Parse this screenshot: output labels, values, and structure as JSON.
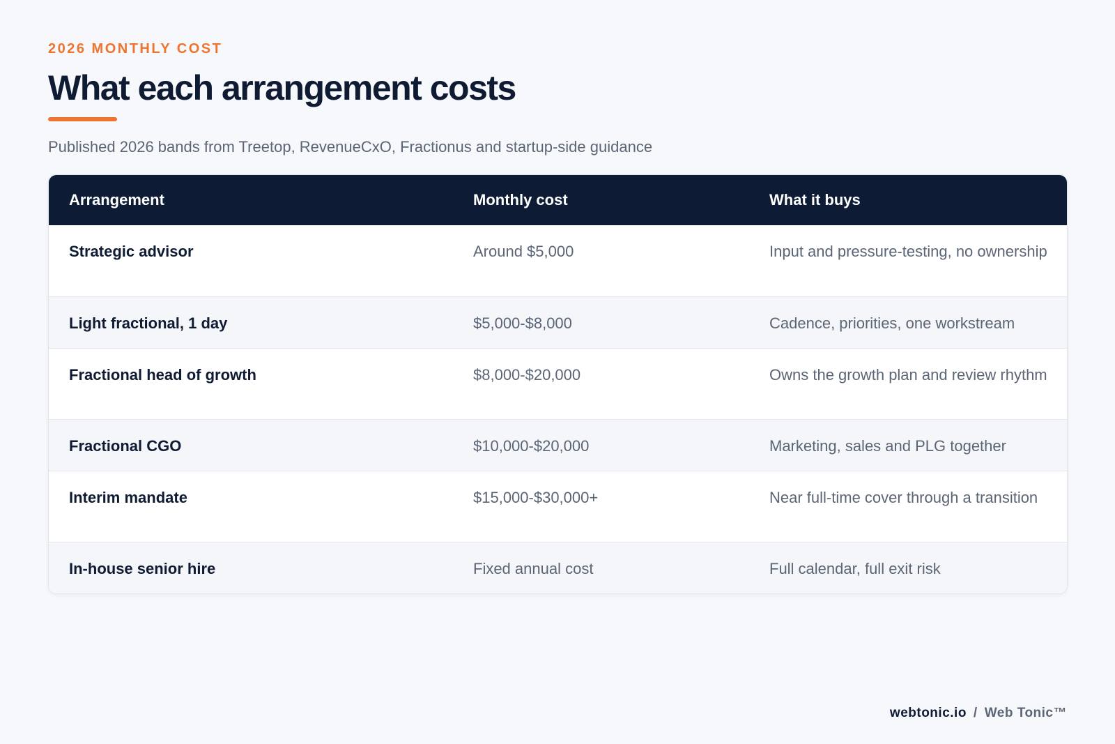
{
  "eyebrow": "2026 MONTHLY COST",
  "title": "What each arrangement costs",
  "subtitle": "Published 2026 bands from Treetop, RevenueCxO, Fractionus and startup-side guidance",
  "table": {
    "headers": [
      "Arrangement",
      "Monthly cost",
      "What it buys"
    ],
    "rows": [
      {
        "arrangement": "Strategic advisor",
        "cost": "Around $5,000",
        "buys": "Input and pressure-testing, no ownership"
      },
      {
        "arrangement": "Light fractional, 1 day",
        "cost": "$5,000-$8,000",
        "buys": "Cadence, priorities, one workstream"
      },
      {
        "arrangement": "Fractional head of growth",
        "cost": "$8,000-$20,000",
        "buys": "Owns the growth plan and review rhythm"
      },
      {
        "arrangement": "Fractional CGO",
        "cost": "$10,000-$20,000",
        "buys": "Marketing, sales and PLG together"
      },
      {
        "arrangement": "Interim mandate",
        "cost": "$15,000-$30,000+",
        "buys": "Near full-time cover through a transition"
      },
      {
        "arrangement": "In-house senior hire",
        "cost": "Fixed annual cost",
        "buys": "Full calendar, full exit risk"
      }
    ]
  },
  "footer": {
    "domain": "webtonic.io",
    "separator": "/",
    "brand": "Web Tonic™"
  },
  "colors": {
    "accent": "#ee7430",
    "navy": "#0d1b34",
    "background": "#f6f8fb"
  }
}
